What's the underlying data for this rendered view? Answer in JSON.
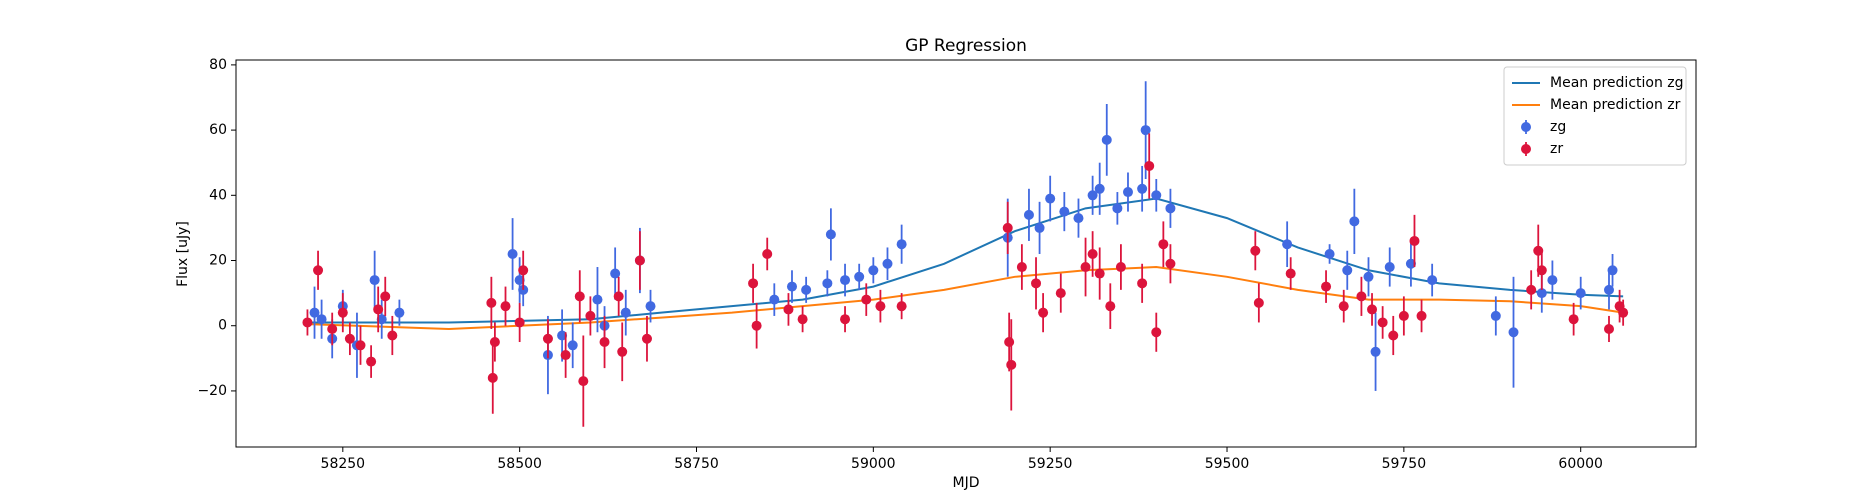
{
  "chart_data": {
    "type": "errorbar",
    "title": "GP Regression",
    "xlabel": "MJD",
    "ylabel": "Flux [uJy]",
    "xlim": [
      58099,
      60163
    ],
    "ylim": [
      -37.2,
      81.5
    ],
    "xticks": [
      58250,
      58500,
      58750,
      59000,
      59250,
      59500,
      59750,
      60000
    ],
    "yticks": [
      {
        "value": -20,
        "label": "−20"
      },
      0,
      20,
      40,
      60,
      80
    ],
    "legend": "upper right",
    "series": [
      {
        "name": "Mean prediction zg",
        "type": "line",
        "color": "#1f77b4",
        "x": [
          58200,
          58400,
          58600,
          58700,
          58800,
          58900,
          59000,
          59100,
          59200,
          59300,
          59400,
          59500,
          59600,
          59700,
          59800,
          59900,
          60000,
          60060
        ],
        "values": [
          1,
          1,
          2,
          4,
          6,
          8,
          12,
          19,
          29,
          36,
          39,
          33,
          24,
          17,
          13,
          11,
          9.5,
          9
        ]
      },
      {
        "name": "Mean prediction zr",
        "type": "line",
        "color": "#ff7f0e",
        "x": [
          58200,
          58400,
          58600,
          58700,
          58800,
          58900,
          59000,
          59100,
          59200,
          59300,
          59400,
          59500,
          59600,
          59700,
          59800,
          59900,
          60000,
          60060
        ],
        "values": [
          0.5,
          -1,
          1,
          2.5,
          4,
          6,
          8,
          11,
          15,
          17,
          18,
          15,
          11,
          8,
          8,
          7.5,
          6,
          4
        ]
      },
      {
        "name": "zg",
        "type": "points",
        "color": "#4169e1",
        "x": [
          58210,
          58220,
          58235,
          58250,
          58270,
          58295,
          58305,
          58330,
          58490,
          58500,
          58505,
          58540,
          58560,
          58575,
          58610,
          58620,
          58635,
          58650,
          58670,
          58685,
          58860,
          58885,
          58905,
          58935,
          58940,
          58960,
          58980,
          59000,
          59020,
          59040,
          59190,
          59220,
          59235,
          59250,
          59270,
          59290,
          59310,
          59320,
          59330,
          59345,
          59360,
          59380,
          59385,
          59400,
          59420,
          59585,
          59645,
          59670,
          59680,
          59700,
          59710,
          59730,
          59760,
          59790,
          59880,
          59905,
          59945,
          59960,
          60000,
          60040,
          60045
        ],
        "values": [
          4,
          2,
          -4,
          6,
          -6,
          14,
          2,
          4,
          22,
          14,
          11,
          -9,
          -3,
          -6,
          8,
          0,
          16,
          4,
          20,
          6,
          8,
          12,
          11,
          13,
          28,
          14,
          15,
          17,
          19,
          25,
          27,
          34,
          30,
          39,
          35,
          33,
          40,
          42,
          57,
          36,
          41,
          42,
          60,
          40,
          36,
          25,
          22,
          17,
          32,
          15,
          -8,
          18,
          19,
          14,
          3,
          -2,
          10,
          14,
          10,
          11,
          17
        ],
        "errors": [
          8,
          6,
          6,
          5,
          10,
          9,
          6,
          4,
          11,
          7,
          5,
          12,
          8,
          7,
          10,
          6,
          8,
          7,
          10,
          5,
          5,
          5,
          4,
          4,
          8,
          5,
          4,
          4,
          5,
          6,
          12,
          8,
          8,
          7,
          6,
          6,
          6,
          8,
          11,
          5,
          6,
          7,
          15,
          5,
          6,
          7,
          3,
          6,
          10,
          6,
          12,
          6,
          7,
          5,
          6,
          17,
          6,
          6,
          5,
          6,
          5
        ]
      },
      {
        "name": "zr",
        "type": "points",
        "color": "#dc143c",
        "x": [
          58200,
          58215,
          58235,
          58250,
          58260,
          58275,
          58290,
          58300,
          58310,
          58320,
          58460,
          58462,
          58465,
          58480,
          58500,
          58505,
          58540,
          58565,
          58585,
          58590,
          58600,
          58620,
          58640,
          58645,
          58670,
          58680,
          58830,
          58835,
          58850,
          58880,
          58900,
          58960,
          58990,
          59010,
          59040,
          59190,
          59192,
          59195,
          59210,
          59230,
          59240,
          59265,
          59300,
          59310,
          59320,
          59335,
          59350,
          59380,
          59390,
          59400,
          59410,
          59420,
          59540,
          59545,
          59590,
          59640,
          59665,
          59690,
          59705,
          59720,
          59735,
          59750,
          59765,
          59775,
          59930,
          59940,
          59945,
          59990,
          60040,
          60055,
          60060
        ],
        "values": [
          1,
          17,
          -1,
          4,
          -4,
          -6,
          -11,
          5,
          9,
          -3,
          7,
          -16,
          -5,
          6,
          1,
          17,
          -4,
          -9,
          9,
          -17,
          3,
          -5,
          9,
          -8,
          20,
          -4,
          13,
          0,
          22,
          5,
          2,
          2,
          8,
          6,
          6,
          30,
          -5,
          -12,
          18,
          13,
          4,
          10,
          18,
          22,
          16,
          6,
          18,
          13,
          49,
          -2,
          25,
          19,
          23,
          7,
          16,
          12,
          6,
          9,
          5,
          1,
          -3,
          3,
          26,
          3,
          11,
          23,
          17,
          2,
          -1,
          6,
          4
        ],
        "errors": [
          4,
          6,
          5,
          6,
          5,
          6,
          5,
          7,
          6,
          6,
          8,
          11,
          6,
          6,
          6,
          6,
          6,
          7,
          8,
          14,
          6,
          8,
          6,
          9,
          9,
          7,
          6,
          7,
          5,
          5,
          4,
          4,
          5,
          5,
          4,
          8,
          9,
          14,
          7,
          8,
          6,
          6,
          9,
          7,
          8,
          7,
          7,
          6,
          10,
          6,
          7,
          6,
          6,
          6,
          5,
          5,
          5,
          6,
          5,
          5,
          6,
          6,
          8,
          5,
          6,
          8,
          6,
          5,
          4,
          5,
          4
        ]
      }
    ]
  }
}
